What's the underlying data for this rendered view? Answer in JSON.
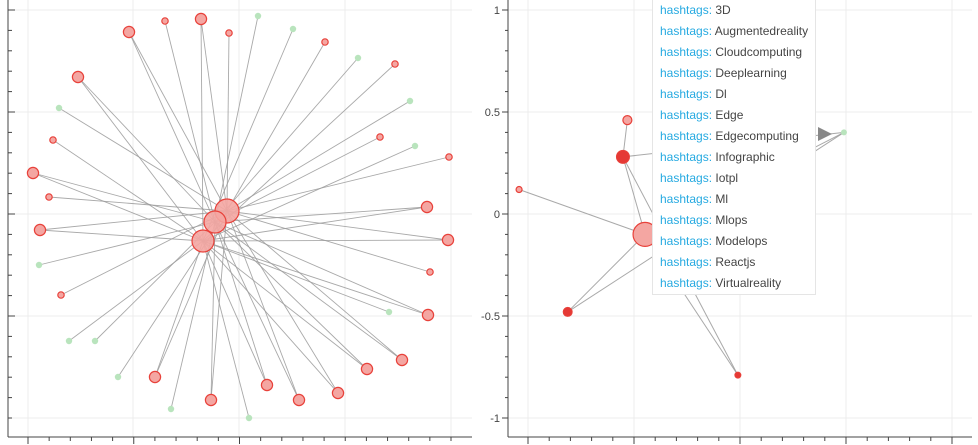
{
  "chart_data": [
    {
      "type": "network",
      "title": "",
      "xlabel": "",
      "ylabel": "",
      "y_ticks": [],
      "grid": true,
      "hub_nodes": [
        {
          "id": "h1",
          "size": "large"
        },
        {
          "id": "h2",
          "size": "large"
        },
        {
          "id": "h3",
          "size": "large"
        }
      ],
      "leaf_nodes": [
        {
          "id": "n1",
          "kind": "red",
          "size": "medium"
        },
        {
          "id": "n2",
          "kind": "red",
          "size": "small"
        },
        {
          "id": "n3",
          "kind": "red",
          "size": "medium"
        },
        {
          "id": "n4",
          "kind": "red",
          "size": "small"
        },
        {
          "id": "n5",
          "kind": "green",
          "size": "small"
        },
        {
          "id": "n6",
          "kind": "green",
          "size": "small"
        },
        {
          "id": "n7",
          "kind": "red",
          "size": "small"
        },
        {
          "id": "n8",
          "kind": "green",
          "size": "small"
        },
        {
          "id": "n9",
          "kind": "red",
          "size": "small"
        },
        {
          "id": "n10",
          "kind": "green",
          "size": "small"
        },
        {
          "id": "n11",
          "kind": "red",
          "size": "small"
        },
        {
          "id": "n12",
          "kind": "green",
          "size": "small"
        },
        {
          "id": "n13",
          "kind": "red",
          "size": "small"
        },
        {
          "id": "n14",
          "kind": "red",
          "size": "medium"
        },
        {
          "id": "n15",
          "kind": "red",
          "size": "medium"
        },
        {
          "id": "n16",
          "kind": "red",
          "size": "small"
        },
        {
          "id": "n17",
          "kind": "red",
          "size": "medium"
        },
        {
          "id": "n18",
          "kind": "green",
          "size": "small"
        },
        {
          "id": "n19",
          "kind": "red",
          "size": "medium"
        },
        {
          "id": "n20",
          "kind": "red",
          "size": "medium"
        },
        {
          "id": "n21",
          "kind": "red",
          "size": "medium"
        },
        {
          "id": "n22",
          "kind": "red",
          "size": "medium"
        },
        {
          "id": "n23",
          "kind": "red",
          "size": "medium"
        },
        {
          "id": "n24",
          "kind": "green",
          "size": "small"
        },
        {
          "id": "n25",
          "kind": "red",
          "size": "medium"
        },
        {
          "id": "n26",
          "kind": "green",
          "size": "small"
        },
        {
          "id": "n27",
          "kind": "red",
          "size": "medium"
        },
        {
          "id": "n28",
          "kind": "green",
          "size": "small"
        },
        {
          "id": "n29",
          "kind": "green",
          "size": "small"
        },
        {
          "id": "n30",
          "kind": "green",
          "size": "small"
        },
        {
          "id": "n31",
          "kind": "red",
          "size": "small"
        },
        {
          "id": "n32",
          "kind": "green",
          "size": "small"
        },
        {
          "id": "n33",
          "kind": "red",
          "size": "medium"
        },
        {
          "id": "n34",
          "kind": "red",
          "size": "small"
        },
        {
          "id": "n35",
          "kind": "red",
          "size": "medium"
        },
        {
          "id": "n36",
          "kind": "red",
          "size": "small"
        },
        {
          "id": "n37",
          "kind": "green",
          "size": "small"
        },
        {
          "id": "n38",
          "kind": "red",
          "size": "medium"
        }
      ]
    },
    {
      "type": "network",
      "title": "",
      "xlabel": "",
      "ylabel": "",
      "ylim": [
        -1.1,
        1.1
      ],
      "y_ticks": [
        {
          "value": 1,
          "label": "1"
        },
        {
          "value": 0.5,
          "label": "0.5"
        },
        {
          "value": 0,
          "label": "0"
        },
        {
          "value": -0.5,
          "label": "-0.5"
        },
        {
          "value": -1,
          "label": "-1"
        }
      ],
      "grid": true,
      "nodes": [
        {
          "id": "a",
          "x": 0.05,
          "y": -0.1,
          "kind": "red",
          "size": "large"
        },
        {
          "id": "b",
          "x": -0.05,
          "y": 0.28,
          "kind": "red-dark",
          "size": "medium"
        },
        {
          "id": "c",
          "x": -0.03,
          "y": 0.46,
          "kind": "red",
          "size": "small"
        },
        {
          "id": "d",
          "x": -0.52,
          "y": 0.12,
          "kind": "red",
          "size": "tiny"
        },
        {
          "id": "e",
          "x": -0.3,
          "y": -0.48,
          "kind": "red-dark",
          "size": "small"
        },
        {
          "id": "f",
          "x": 0.47,
          "y": -0.79,
          "kind": "red-dark",
          "size": "tiny"
        },
        {
          "id": "g",
          "x": 0.95,
          "y": 0.4,
          "kind": "green",
          "size": "tiny"
        }
      ],
      "edges": [
        [
          "a",
          "b"
        ],
        [
          "a",
          "d"
        ],
        [
          "a",
          "e"
        ],
        [
          "b",
          "c"
        ],
        [
          "b",
          "f"
        ],
        [
          "b",
          "g"
        ],
        [
          "a",
          "f"
        ],
        [
          "a",
          "g"
        ],
        [
          "e",
          "g"
        ]
      ],
      "tooltip": {
        "key": "hashtags:",
        "values": [
          "3D",
          "Augmentedreality",
          "Cloudcomputing",
          "Deeplearning",
          "Dl",
          "Edge",
          "Edgecomputing",
          "Infographic",
          "Iotpl",
          "Ml",
          "Mlops",
          "Modelops",
          "Reactjs",
          "Virtualreality"
        ]
      }
    }
  ],
  "colors": {
    "red_fill": "#f4a6a2",
    "red_stroke": "#e8413a",
    "red_dark": "#e53935",
    "green_fill": "#b9e4bd",
    "edge": "#9a9a9a",
    "grid": "#ececec",
    "axis": "#444444"
  }
}
